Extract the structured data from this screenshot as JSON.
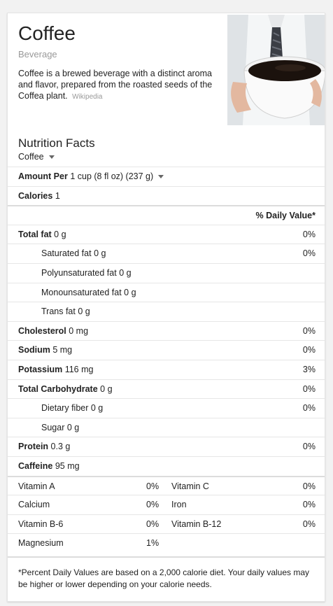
{
  "header": {
    "title": "Coffee",
    "subtitle": "Beverage",
    "description": "Coffee is a brewed beverage with a distinct aroma and flavor, prepared from the roasted seeds of the Coffea plant.",
    "source": "Wikipedia"
  },
  "nutrition": {
    "heading": "Nutrition Facts",
    "item_selector": "Coffee",
    "amount_label": "Amount Per",
    "serving": "1 cup (8 fl oz) (237 g)",
    "calories_label": "Calories",
    "calories_value": "1",
    "dv_header": "% Daily Value*",
    "rows": [
      {
        "label": "Total fat",
        "value": "0 g",
        "pct": "0%"
      },
      {
        "label": "Saturated fat",
        "value": "0 g",
        "pct": "0%"
      },
      {
        "label": "Polyunsaturated fat",
        "value": "0 g",
        "pct": ""
      },
      {
        "label": "Monounsaturated fat",
        "value": "0 g",
        "pct": ""
      },
      {
        "label": "Trans fat",
        "value": "0 g",
        "pct": ""
      },
      {
        "label": "Cholesterol",
        "value": "0 mg",
        "pct": "0%"
      },
      {
        "label": "Sodium",
        "value": "5 mg",
        "pct": "0%"
      },
      {
        "label": "Potassium",
        "value": "116 mg",
        "pct": "3%"
      },
      {
        "label": "Total Carbohydrate",
        "value": "0 g",
        "pct": "0%"
      },
      {
        "label": "Dietary fiber",
        "value": "0 g",
        "pct": "0%"
      },
      {
        "label": "Sugar",
        "value": "0 g",
        "pct": ""
      },
      {
        "label": "Protein",
        "value": "0.3 g",
        "pct": "0%"
      },
      {
        "label": "Caffeine",
        "value": "95 mg",
        "pct": ""
      }
    ],
    "vitamins": [
      {
        "a": "Vitamin A",
        "ap": "0%",
        "b": "Vitamin C",
        "bp": "0%"
      },
      {
        "a": "Calcium",
        "ap": "0%",
        "b": "Iron",
        "bp": "0%"
      },
      {
        "a": "Vitamin B-6",
        "ap": "0%",
        "b": "Vitamin B-12",
        "bp": "0%"
      },
      {
        "a": "Magnesium",
        "ap": "1%",
        "b": "",
        "bp": ""
      }
    ],
    "footnote": "*Percent Daily Values are based on a 2,000 calorie diet. Your daily values may be higher or lower depending on your calorie needs."
  },
  "colors": {
    "accent_text": "#222222",
    "muted_text": "#999999",
    "divider": "#e6e6e6"
  }
}
